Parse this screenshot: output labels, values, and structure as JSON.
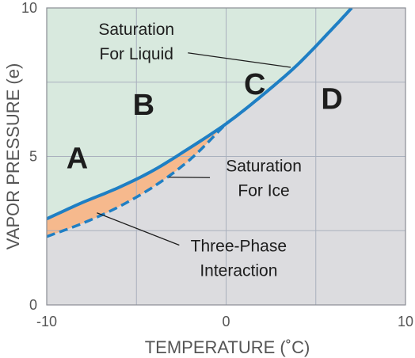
{
  "chart_data": {
    "type": "line",
    "xlabel": "TEMPERATURE (˚C)",
    "ylabel": "VAPOR PRESSURE (e)",
    "xlim": [
      -10,
      10
    ],
    "ylim": [
      0,
      10
    ],
    "x_ticks": [
      -10,
      0,
      10
    ],
    "x_tick_labels": [
      "-10",
      "0",
      "10"
    ],
    "y_ticks": [
      0,
      5,
      10
    ],
    "y_tick_labels": [
      "0",
      "5",
      "10"
    ],
    "grid": true,
    "series": [
      {
        "name": "Saturation For Liquid",
        "style": "solid",
        "color": "#1f7fc4",
        "x": [
          -10,
          -8,
          -6,
          -4,
          -2,
          0,
          2,
          4,
          6,
          7
        ],
        "y": [
          2.9,
          3.45,
          3.95,
          4.55,
          5.3,
          6.1,
          7.05,
          8.1,
          9.35,
          10.0
        ]
      },
      {
        "name": "Saturation For Ice",
        "style": "dashed",
        "color": "#1f7fc4",
        "x": [
          -10,
          -8,
          -6,
          -4,
          -2,
          0
        ],
        "y": [
          2.3,
          2.75,
          3.3,
          4.0,
          4.9,
          6.1
        ]
      }
    ],
    "regions": [
      {
        "label": "A",
        "x": -8.3,
        "y": 4.6
      },
      {
        "label": "B",
        "x": -4.6,
        "y": 6.4
      },
      {
        "label": "C",
        "x": 1.6,
        "y": 7.1
      },
      {
        "label": "D",
        "x": 5.9,
        "y": 6.6
      }
    ],
    "annotations": [
      {
        "lines": [
          "Saturation",
          "For Liquid"
        ],
        "text_x": -5,
        "text_y": 9.1,
        "arrow_to_x": 3.6,
        "arrow_to_y": 8.0,
        "anchor": "middle"
      },
      {
        "lines": [
          "Saturation",
          "For Ice"
        ],
        "text_x": 2.1,
        "text_y": 4.5,
        "arrow_to_x": -3.2,
        "arrow_to_y": 4.3,
        "anchor": "middle"
      },
      {
        "lines": [
          "Three-Phase",
          "Interaction"
        ],
        "text_x": 0.7,
        "text_y": 1.8,
        "arrow_to_x": -7.2,
        "arrow_to_y": 3.1,
        "anchor": "middle"
      }
    ],
    "colors": {
      "liquid_region": "#d8e9de",
      "gas_region": "#dcdcdf",
      "three_phase_region": "#f6b98d",
      "curve": "#1f7fc4",
      "grid": "#a9b0bd",
      "axis": "#8a8d94",
      "text": "#1d1d1d",
      "tick_text": "#555555"
    }
  }
}
